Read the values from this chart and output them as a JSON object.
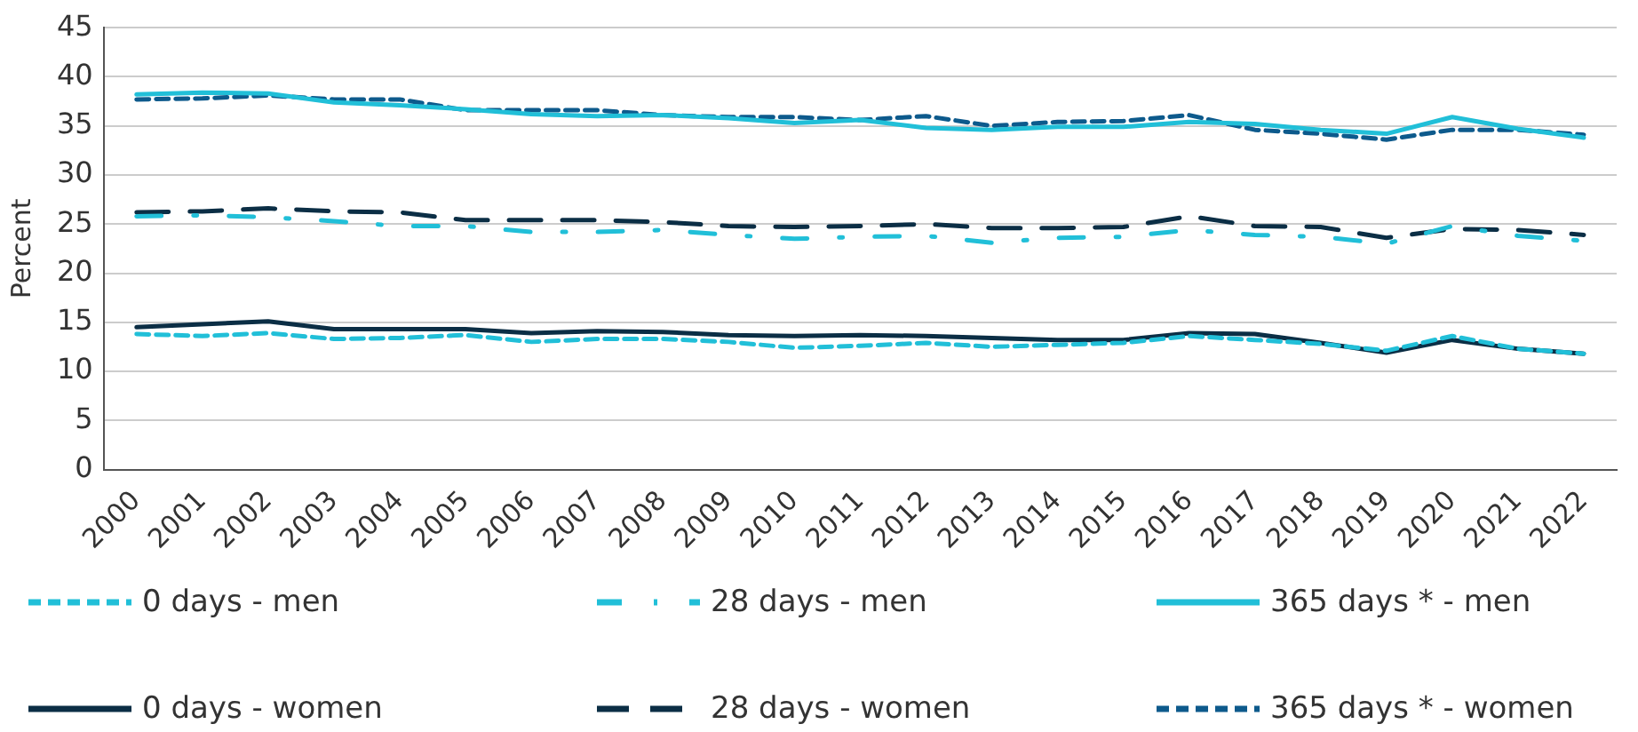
{
  "chart_data": {
    "type": "line",
    "ylabel": "Percent",
    "categories": [
      "2000",
      "2001",
      "2002",
      "2003",
      "2004",
      "2005",
      "2006",
      "2007",
      "2008",
      "2009",
      "2010",
      "2011",
      "2012",
      "2013",
      "2014",
      "2015",
      "2016",
      "2017",
      "2018",
      "2019",
      "2020",
      "2021",
      "2022"
    ],
    "ylim": [
      0,
      45
    ],
    "yticks": [
      0,
      5,
      10,
      15,
      20,
      25,
      30,
      35,
      40,
      45
    ],
    "grid": "y",
    "legend": "bottom",
    "marker": "none",
    "series": [
      {
        "name": "0 days - men",
        "color": "#21bfd8",
        "line_style": "dashed",
        "values": [
          13.8,
          13.6,
          13.9,
          13.3,
          13.4,
          13.7,
          13.0,
          13.3,
          13.3,
          13.0,
          12.4,
          12.6,
          12.9,
          12.5,
          12.7,
          12.9,
          13.6,
          13.2,
          12.8,
          12.1,
          13.6,
          12.3,
          11.8
        ]
      },
      {
        "name": "28 days - men",
        "color": "#21bfd8",
        "line_style": "dashdot",
        "values": [
          25.8,
          25.9,
          25.7,
          25.3,
          24.8,
          24.8,
          24.2,
          24.2,
          24.4,
          23.9,
          23.5,
          23.7,
          23.8,
          23.1,
          23.6,
          23.7,
          24.4,
          23.9,
          23.7,
          23.0,
          24.8,
          23.8,
          23.3
        ]
      },
      {
        "name": "365 days * - men",
        "color": "#21bfd8",
        "line_style": "solid",
        "values": [
          38.2,
          38.4,
          38.3,
          37.4,
          37.1,
          36.7,
          36.2,
          36.0,
          36.1,
          35.8,
          35.3,
          35.6,
          34.8,
          34.6,
          34.9,
          34.9,
          35.4,
          35.2,
          34.6,
          34.2,
          35.9,
          34.7,
          33.8
        ]
      },
      {
        "name": "0 days - women",
        "color": "#0b2e45",
        "line_style": "solid",
        "values": [
          14.5,
          14.8,
          15.1,
          14.3,
          14.3,
          14.3,
          13.9,
          14.1,
          14.0,
          13.7,
          13.6,
          13.7,
          13.6,
          13.4,
          13.2,
          13.2,
          13.9,
          13.8,
          12.9,
          11.9,
          13.2,
          12.3,
          11.8
        ]
      },
      {
        "name": "28 days - women",
        "color": "#0b2e45",
        "line_style": "longdash",
        "values": [
          26.2,
          26.3,
          26.6,
          26.3,
          26.2,
          25.4,
          25.4,
          25.4,
          25.2,
          24.8,
          24.7,
          24.8,
          25.0,
          24.6,
          24.6,
          24.7,
          25.8,
          24.8,
          24.7,
          23.6,
          24.5,
          24.4,
          23.9
        ]
      },
      {
        "name": "365 days * - women",
        "color": "#0d5a8c",
        "line_style": "dashed",
        "values": [
          37.7,
          37.8,
          38.1,
          37.7,
          37.7,
          36.6,
          36.6,
          36.6,
          36.1,
          35.9,
          35.9,
          35.6,
          36.0,
          35.0,
          35.4,
          35.5,
          36.1,
          34.6,
          34.2,
          33.6,
          34.6,
          34.6,
          34.1
        ]
      }
    ]
  }
}
